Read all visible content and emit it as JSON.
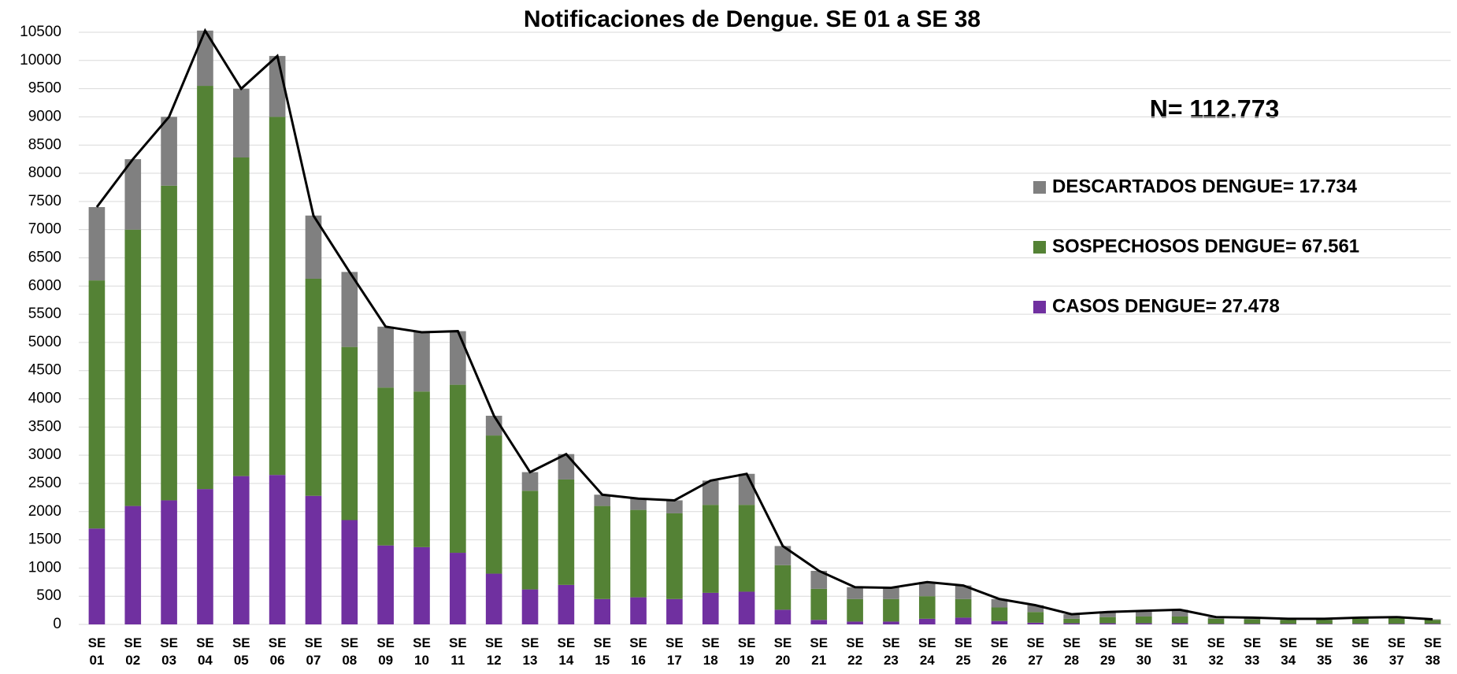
{
  "chart_data": {
    "type": "stacked_bar_line",
    "title": "Notificaciones de Dengue. SE 01 a SE  38",
    "annotation": "N= 112.773",
    "categories": [
      "SE 01",
      "SE 02",
      "SE 03",
      "SE 04",
      "SE 05",
      "SE 06",
      "SE 07",
      "SE 08",
      "SE 09",
      "SE 10",
      "SE 11",
      "SE 12",
      "SE 13",
      "SE 14",
      "SE 15",
      "SE 16",
      "SE 17",
      "SE 18",
      "SE 19",
      "SE 20",
      "SE 21",
      "SE 22",
      "SE 23",
      "SE 24",
      "SE 25",
      "SE 26",
      "SE 27",
      "SE 28",
      "SE 29",
      "SE 30",
      "SE 31",
      "SE 32",
      "SE 33",
      "SE 34",
      "SE 35",
      "SE 36",
      "SE 37",
      "SE 38"
    ],
    "series": [
      {
        "name": "CASOS DENGUE= 27.478",
        "color": "#7030a0",
        "values": [
          1700,
          2100,
          2200,
          2400,
          2630,
          2650,
          2280,
          1850,
          1400,
          1370,
          1270,
          900,
          620,
          700,
          450,
          480,
          450,
          560,
          580,
          260,
          80,
          50,
          50,
          100,
          120,
          60,
          30,
          20,
          20,
          20,
          20,
          10,
          10,
          10,
          10,
          10,
          10,
          10
        ]
      },
      {
        "name": "SOSPECHOSOS DENGUE= 67.561",
        "color": "#548235",
        "values": [
          4400,
          4900,
          5580,
          7150,
          5650,
          6350,
          3850,
          3070,
          2800,
          2760,
          2980,
          2450,
          1750,
          1870,
          1650,
          1550,
          1520,
          1560,
          1540,
          790,
          550,
          400,
          400,
          400,
          330,
          240,
          190,
          80,
          110,
          120,
          120,
          90,
          80,
          70,
          70,
          90,
          100,
          70
        ]
      },
      {
        "name": "DESCARTADOS DENGUE= 17.734",
        "color": "#808080",
        "values": [
          1300,
          1250,
          1220,
          980,
          1220,
          1080,
          1120,
          1330,
          1080,
          1050,
          950,
          350,
          330,
          450,
          200,
          200,
          230,
          430,
          550,
          340,
          320,
          210,
          200,
          250,
          240,
          150,
          120,
          80,
          90,
          100,
          120,
          30,
          30,
          20,
          20,
          20,
          20,
          10
        ]
      }
    ],
    "line": {
      "color": "#000000",
      "values": [
        7400,
        8250,
        9000,
        10530,
        9500,
        10080,
        7250,
        6250,
        5280,
        5180,
        5200,
        3700,
        2700,
        3020,
        2300,
        2230,
        2200,
        2550,
        2670,
        1390,
        950,
        660,
        650,
        750,
        690,
        450,
        340,
        180,
        220,
        240,
        260,
        130,
        120,
        100,
        100,
        120,
        130,
        90
      ]
    },
    "ylim": [
      0,
      10500
    ],
    "yticks": [
      0,
      500,
      1000,
      1500,
      2000,
      2500,
      3000,
      3500,
      4000,
      4500,
      5000,
      5500,
      6000,
      6500,
      7000,
      7500,
      8000,
      8500,
      9000,
      9500,
      10000,
      10500
    ],
    "grid": true
  }
}
